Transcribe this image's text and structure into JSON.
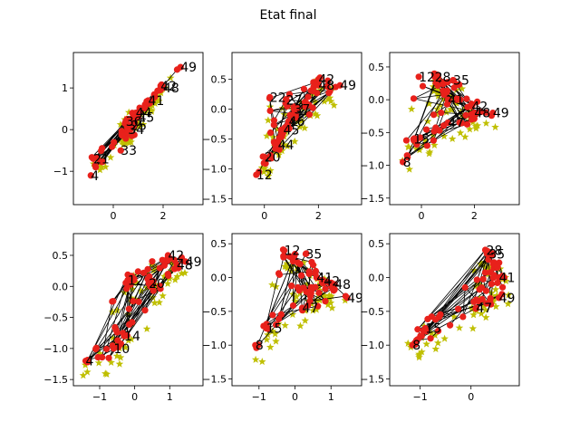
{
  "figure": {
    "title": "Etat final"
  },
  "colors": {
    "star": "#bfbf00",
    "point": "#e8211b",
    "edge": "#000000",
    "frame": "#000000"
  },
  "chart_data": [
    {
      "type": "scatter",
      "panel": "top-left",
      "xlim": [
        -1.6,
        3.6
      ],
      "ylim": [
        -1.8,
        1.85
      ],
      "xticks": [
        0,
        2
      ],
      "yticks": [
        -1,
        0,
        1
      ],
      "xtick_labels": [
        "0",
        "2"
      ],
      "ytick_labels": [
        "−1",
        "0",
        "1"
      ],
      "labels": [
        {
          "text": "49",
          "x": 2.7,
          "y": 1.5
        },
        {
          "text": "48",
          "x": 2.0,
          "y": 1.0
        },
        {
          "text": "42",
          "x": 1.9,
          "y": 1.05
        },
        {
          "text": "41",
          "x": 1.4,
          "y": 0.7
        },
        {
          "text": "44",
          "x": 0.9,
          "y": 0.4
        },
        {
          "text": "45",
          "x": 1.0,
          "y": 0.3
        },
        {
          "text": "36",
          "x": 0.5,
          "y": 0.2
        },
        {
          "text": "25",
          "x": 0.7,
          "y": 0.1
        },
        {
          "text": "34",
          "x": 0.6,
          "y": 0.0
        },
        {
          "text": "33",
          "x": 0.3,
          "y": -0.5
        },
        {
          "text": "21",
          "x": -0.8,
          "y": -0.7
        },
        {
          "text": "4",
          "x": -0.9,
          "y": -1.1
        }
      ]
    },
    {
      "type": "scatter",
      "panel": "top-middle",
      "xlim": [
        -1.2,
        3.6
      ],
      "ylim": [
        -1.6,
        0.95
      ],
      "xticks": [
        0,
        2
      ],
      "yticks": [
        -1.5,
        -1.0,
        -0.5,
        0.0,
        0.5
      ],
      "xtick_labels": [
        "0",
        "2"
      ],
      "ytick_labels": [
        "−1.5",
        "−1.0",
        "−0.5",
        "0.0",
        "0.5"
      ],
      "labels": [
        {
          "text": "49",
          "x": 2.8,
          "y": 0.4
        },
        {
          "text": "42",
          "x": 2.0,
          "y": 0.5
        },
        {
          "text": "48",
          "x": 2.0,
          "y": 0.4
        },
        {
          "text": "22",
          "x": 0.2,
          "y": 0.2
        },
        {
          "text": "27",
          "x": 0.8,
          "y": 0.15
        },
        {
          "text": "37",
          "x": 1.1,
          "y": 0.0
        },
        {
          "text": "46",
          "x": 0.9,
          "y": -0.2
        },
        {
          "text": "45",
          "x": 0.7,
          "y": -0.35
        },
        {
          "text": "44",
          "x": 0.5,
          "y": -0.6
        },
        {
          "text": "20",
          "x": 0.0,
          "y": -0.8
        },
        {
          "text": "12",
          "x": -0.3,
          "y": -1.1
        }
      ]
    },
    {
      "type": "scatter",
      "panel": "top-right",
      "xlim": [
        -1.2,
        3.7
      ],
      "ylim": [
        -1.6,
        0.72
      ],
      "xticks": [
        0,
        2
      ],
      "yticks": [
        -1.5,
        -1.0,
        -0.5,
        0.0,
        0.5
      ],
      "xtick_labels": [
        "0",
        "2"
      ],
      "ytick_labels": [
        "−1.5",
        "−1.0",
        "−0.5",
        "0.0",
        "0.5"
      ],
      "labels": [
        {
          "text": "12",
          "x": -0.1,
          "y": 0.35
        },
        {
          "text": "28",
          "x": 0.5,
          "y": 0.35
        },
        {
          "text": "35",
          "x": 1.2,
          "y": 0.3
        },
        {
          "text": "41",
          "x": 1.0,
          "y": 0.0
        },
        {
          "text": "42",
          "x": 1.9,
          "y": -0.1
        },
        {
          "text": "48",
          "x": 2.0,
          "y": -0.2
        },
        {
          "text": "49",
          "x": 2.7,
          "y": -0.2
        },
        {
          "text": "47",
          "x": 1.0,
          "y": -0.35
        },
        {
          "text": "15",
          "x": -0.3,
          "y": -0.6
        },
        {
          "text": "8",
          "x": -0.7,
          "y": -0.95
        }
      ]
    },
    {
      "type": "scatter",
      "panel": "bottom-left",
      "xlim": [
        -1.75,
        1.95
      ],
      "ylim": [
        -1.6,
        0.85
      ],
      "xticks": [
        -1,
        0,
        1
      ],
      "yticks": [
        -1.5,
        -1.0,
        -0.5,
        0.0,
        0.5
      ],
      "xtick_labels": [
        "−1",
        "0",
        "1"
      ],
      "ytick_labels": [
        "−1.5",
        "−1.0",
        "−0.5",
        "0.0",
        "0.5"
      ],
      "labels": [
        {
          "text": "42",
          "x": 0.95,
          "y": 0.5
        },
        {
          "text": "49",
          "x": 1.45,
          "y": 0.4
        },
        {
          "text": "48",
          "x": 1.2,
          "y": 0.35
        },
        {
          "text": "12",
          "x": -0.2,
          "y": 0.1
        },
        {
          "text": "20",
          "x": 0.4,
          "y": 0.05
        },
        {
          "text": "14",
          "x": -0.3,
          "y": -0.8
        },
        {
          "text": "10",
          "x": -0.6,
          "y": -1.0
        },
        {
          "text": "4",
          "x": -1.4,
          "y": -1.2
        }
      ]
    },
    {
      "type": "scatter",
      "panel": "bottom-middle",
      "xlim": [
        -1.75,
        1.85
      ],
      "ylim": [
        -1.6,
        0.65
      ],
      "xticks": [
        -1,
        0,
        1
      ],
      "yticks": [
        -1.5,
        -1.0,
        -0.5,
        0.0,
        0.5
      ],
      "xtick_labels": [
        "−1",
        "0",
        "1"
      ],
      "ytick_labels": [
        "−1.5",
        "−1.0",
        "−0.5",
        "0.0",
        "0.5"
      ],
      "labels": [
        {
          "text": "12",
          "x": -0.3,
          "y": 0.4
        },
        {
          "text": "35",
          "x": 0.3,
          "y": 0.35
        },
        {
          "text": "41",
          "x": 0.6,
          "y": 0.0
        },
        {
          "text": "42",
          "x": 0.8,
          "y": -0.05
        },
        {
          "text": "48",
          "x": 1.1,
          "y": -0.1
        },
        {
          "text": "49",
          "x": 1.45,
          "y": -0.3
        },
        {
          "text": "47",
          "x": 0.2,
          "y": -0.45
        },
        {
          "text": "15",
          "x": -0.8,
          "y": -0.75
        },
        {
          "text": "8",
          "x": -1.1,
          "y": -1.0
        }
      ]
    },
    {
      "type": "scatter",
      "panel": "bottom-right",
      "xlim": [
        -1.6,
        0.95
      ],
      "ylim": [
        -1.6,
        0.65
      ],
      "xticks": [
        -1,
        0
      ],
      "yticks": [
        -1.5,
        -1.0,
        -0.5,
        0.0,
        0.5
      ],
      "xtick_labels": [
        "−1",
        "0"
      ],
      "ytick_labels": [
        "−1.5",
        "−1.0",
        "−0.5",
        "0.0",
        "0.5"
      ],
      "labels": [
        {
          "text": "28",
          "x": 0.3,
          "y": 0.4
        },
        {
          "text": "35",
          "x": 0.35,
          "y": 0.35
        },
        {
          "text": "41",
          "x": 0.55,
          "y": 0.0
        },
        {
          "text": "49",
          "x": 0.55,
          "y": -0.3
        },
        {
          "text": "47",
          "x": 0.1,
          "y": -0.45
        },
        {
          "text": "15",
          "x": -0.9,
          "y": -0.75
        },
        {
          "text": "8",
          "x": -1.15,
          "y": -1.0
        }
      ]
    }
  ]
}
